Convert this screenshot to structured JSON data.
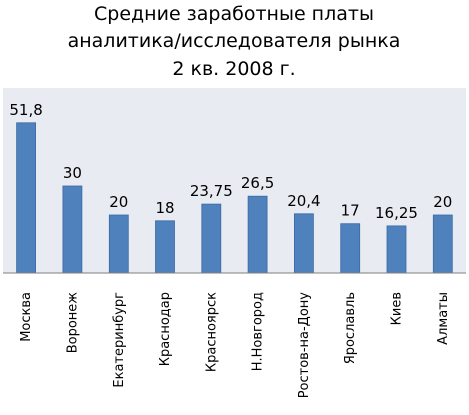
{
  "chart_data": {
    "type": "bar",
    "title_lines": [
      "Средние заработные платы",
      "аналитика/исследователя рынка",
      "2 кв. 2008 г."
    ],
    "categories": [
      "Москва",
      "Воронеж",
      "Екатеринбург",
      "Краснодар",
      "Красноярск",
      "Н.Новгород",
      "Ростов-на-Дону",
      "Ярославль",
      "Киев",
      "Алматы"
    ],
    "values": [
      51.8,
      30,
      20,
      18,
      23.75,
      26.5,
      20.4,
      17,
      16.25,
      20
    ],
    "value_labels": [
      "51,8",
      "30",
      "20",
      "18",
      "23,75",
      "26,5",
      "20,4",
      "17",
      "16,25",
      "20"
    ],
    "ylim": [
      0,
      60
    ],
    "grid": false,
    "legend": "none",
    "colors": {
      "bar_fill": "#4f81bd",
      "bar_edge": "#3a6aa5",
      "plot_bg": "#e8ebf1",
      "axis": "#7f7f7f"
    }
  }
}
